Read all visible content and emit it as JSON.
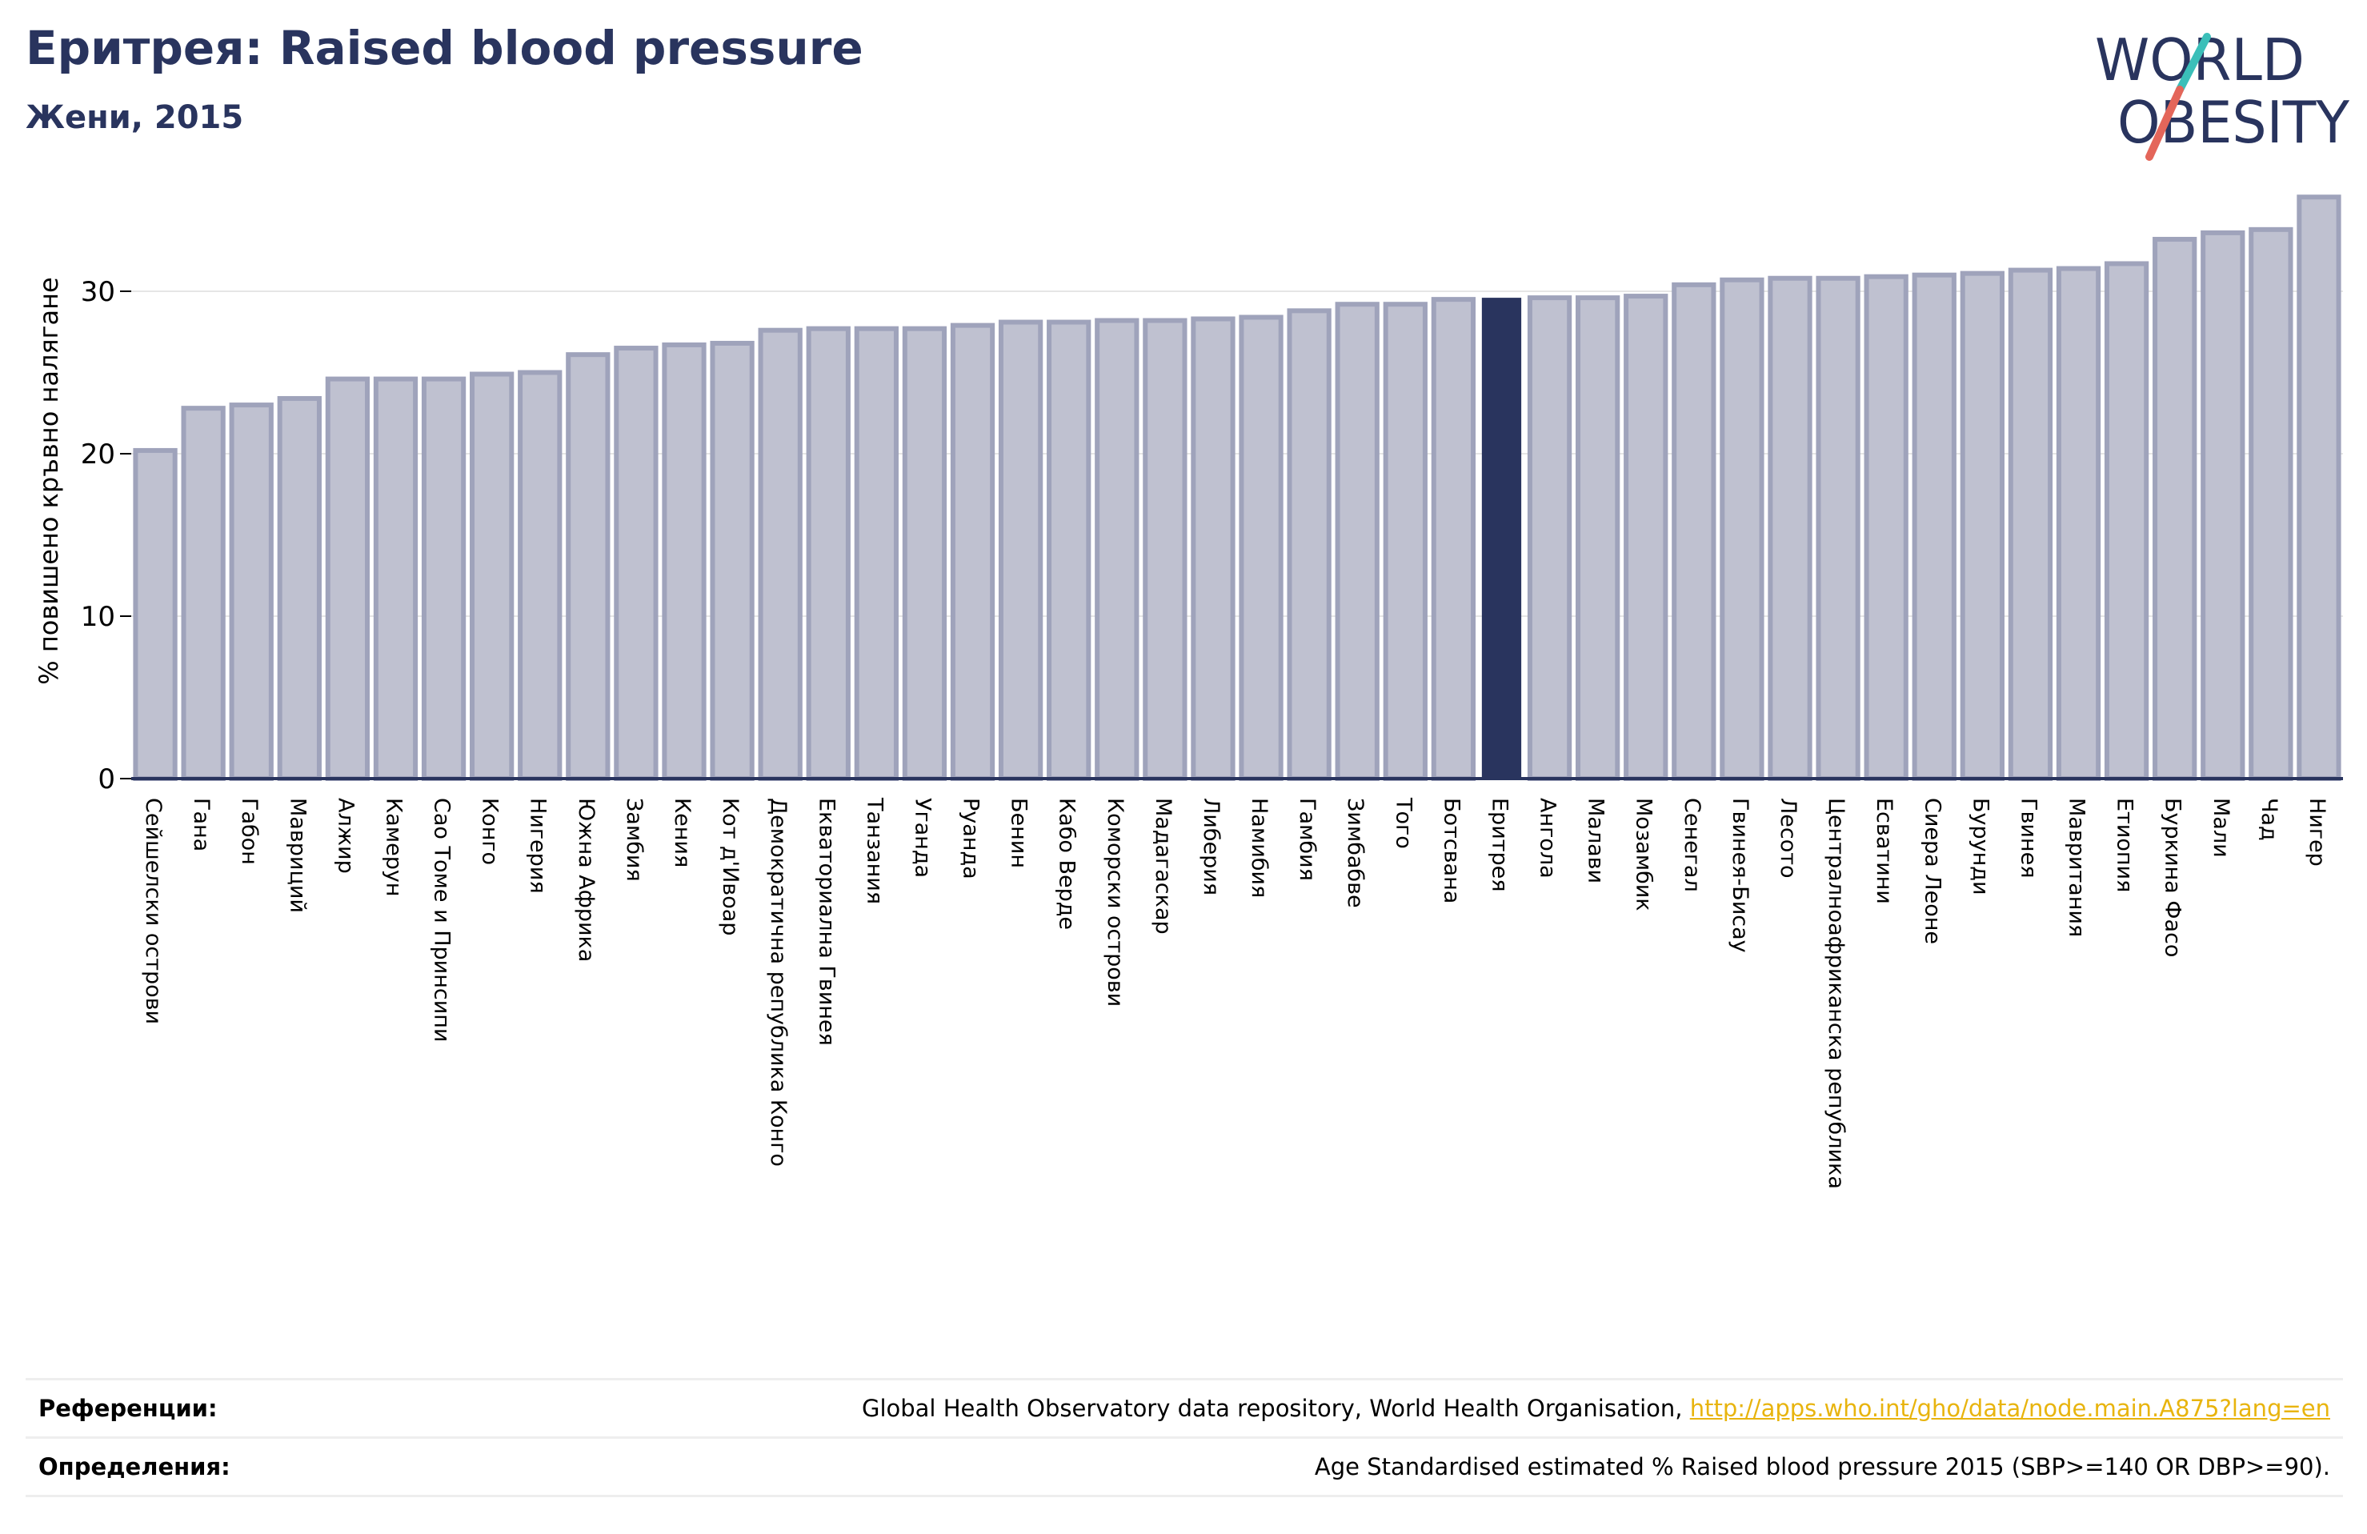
{
  "header": {
    "title": "Еритрея: Raised blood pressure",
    "subtitle": "Жени, 2015"
  },
  "logo": {
    "line1": "WORLD",
    "line2": "OBESITY",
    "colors": {
      "text": "#29345e",
      "slash_top": "#3bbfb9",
      "slash_bottom": "#e4665a"
    }
  },
  "chart_data": {
    "type": "bar",
    "title": "Еритрея: Raised blood pressure",
    "subtitle": "Жени, 2015",
    "xlabel": "",
    "ylabel": "% повишено кръвно налягане",
    "ylim": [
      0,
      36.6
    ],
    "yticks": [
      0,
      10,
      20,
      30
    ],
    "grid": "horizontal",
    "highlight": "Еритрея",
    "colors": {
      "bar": "#bfc1d0",
      "bar_edge": "#9fa3bb",
      "highlight": "#29345e",
      "grid": "#e6e6e6",
      "axis": "#29345e"
    },
    "categories": [
      "Сейшелски острови",
      "Гана",
      "Габон",
      "Мавриций",
      "Алжир",
      "Камерун",
      "Сао Томе и Принсипи",
      "Конго",
      "Нигерия",
      "Южна Африка",
      "Замбия",
      "Кения",
      "Кот д'Ивоар",
      "Демократична република Конго",
      "Екваториална Гвинея",
      "Танзания",
      "Уганда",
      "Руанда",
      "Бенин",
      "Кабо Верде",
      "Коморски острови",
      "Мадагаскар",
      "Либерия",
      "Намибия",
      "Гамбия",
      "Зимбабве",
      "Того",
      "Ботсвана",
      "Еритрея",
      "Ангола",
      "Малави",
      "Мозамбик",
      "Сенегал",
      "Гвинея-Бисау",
      "Лесото",
      "Централноафриканска република",
      "Есватини",
      "Сиера Леоне",
      "Бурунди",
      "Гвинея",
      "Мавритания",
      "Етиопия",
      "Буркина Фасо",
      "Мали",
      "Чад",
      "Нигер"
    ],
    "values": [
      20.2,
      22.8,
      23.0,
      23.4,
      24.6,
      24.6,
      24.6,
      24.9,
      25.0,
      26.1,
      26.5,
      26.7,
      26.8,
      27.6,
      27.7,
      27.7,
      27.7,
      27.9,
      28.1,
      28.1,
      28.2,
      28.2,
      28.3,
      28.4,
      28.8,
      29.2,
      29.2,
      29.5,
      29.6,
      29.6,
      29.6,
      29.7,
      30.4,
      30.7,
      30.8,
      30.8,
      30.9,
      31.0,
      31.1,
      31.3,
      31.4,
      31.7,
      33.2,
      33.6,
      33.8,
      35.8
    ]
  },
  "references": {
    "sources_label": "Референции:",
    "sources_text": "Global Health Observatory data repository, World Health Organisation,",
    "sources_link": "http://apps.who.int/gho/data/node.main.A875?lang=en",
    "definitions_label": "Определения:",
    "definitions_text": "Age Standardised estimated % Raised blood pressure 2015 (SBP>=140 OR DBP>=90)."
  }
}
